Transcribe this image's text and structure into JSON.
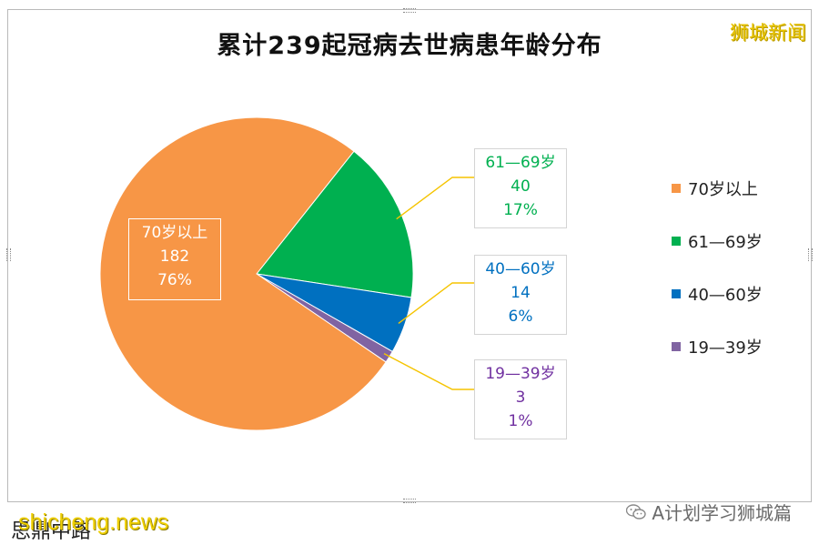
{
  "chart_data": {
    "type": "pie",
    "title": "累计239起冠病去世病患年龄分布",
    "total": 239,
    "slices": [
      {
        "name": "70岁以上",
        "label": "70岁以上",
        "value": 182,
        "percent": "76%",
        "color": "#f79646"
      },
      {
        "name": "61—69岁",
        "label": "61—69岁",
        "value": 40,
        "percent": "17%",
        "color": "#00b050"
      },
      {
        "name": "40—60岁",
        "label": "40—60岁",
        "value": 14,
        "percent": "6%",
        "color": "#0070c0"
      },
      {
        "name": "19—39岁",
        "label": "19—39岁",
        "value": 3,
        "percent": "1%",
        "color": "#8064a2"
      }
    ],
    "legend_position": "right",
    "leader_line_color": "#f5c400"
  },
  "watermarks": {
    "top_right": "狮城新闻",
    "bottom_left_source": "思鼎中路",
    "bottom_left_site": "shicheng.news",
    "bottom_right": "A计划学习狮城篇"
  }
}
